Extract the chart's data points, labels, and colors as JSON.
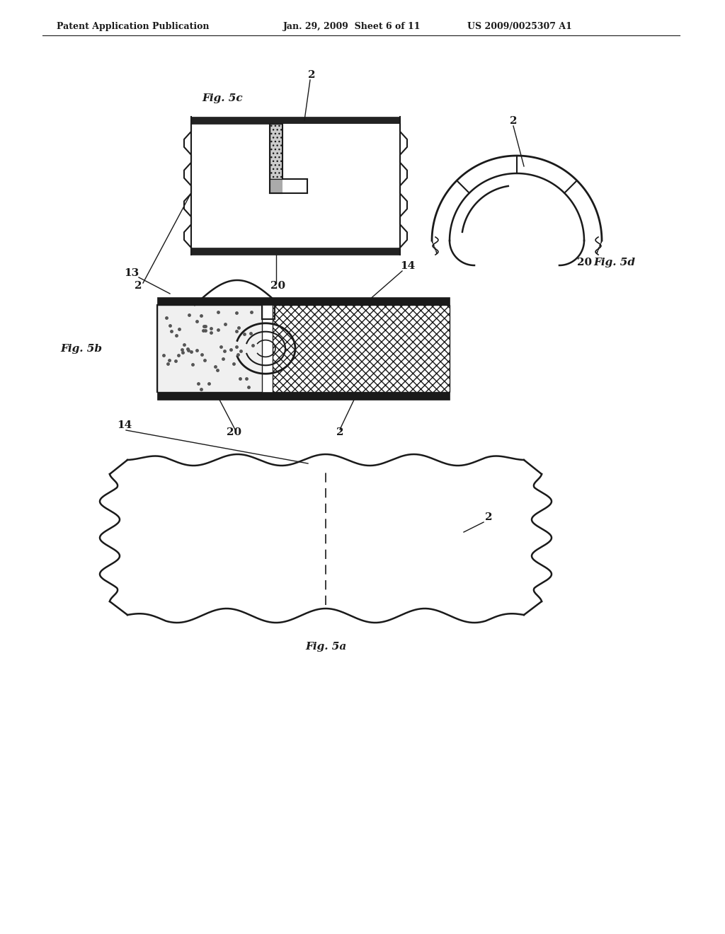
{
  "bg_color": "#ffffff",
  "line_color": "#1a1a1a",
  "header_left": "Patent Application Publication",
  "header_mid": "Jan. 29, 2009  Sheet 6 of 11",
  "header_right": "US 2009/0025307 A1",
  "fig5a_label": "Fig. 5a",
  "fig5b_label": "Fig. 5b",
  "fig5c_label": "Fig. 5c",
  "fig5d_label": "Fig. 5d",
  "label_2": "2",
  "label_14": "14",
  "label_13": "13",
  "label_20": "20"
}
